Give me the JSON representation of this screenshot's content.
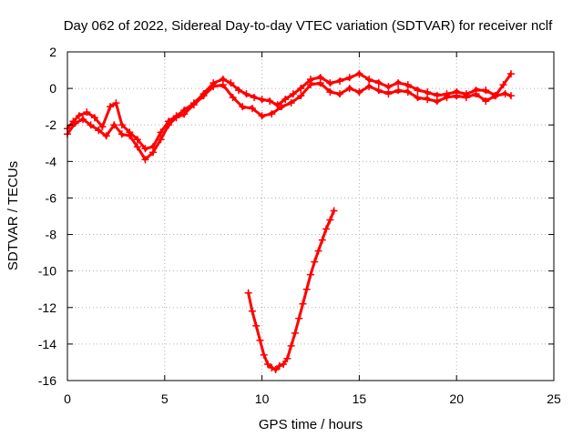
{
  "chart_data": {
    "type": "scatter",
    "title": "Day 062 of 2022, Sidereal Day-to-day VTEC variation (SDTVAR) for receiver nclf",
    "xlabel": "GPS time / hours",
    "ylabel": "SDTVAR / TECUs",
    "xlim": [
      0,
      25
    ],
    "ylim": [
      -16,
      2
    ],
    "xticks": [
      0,
      5,
      10,
      15,
      20,
      25
    ],
    "yticks": [
      2,
      0,
      -2,
      -4,
      -6,
      -8,
      -10,
      -12,
      -14,
      -16
    ],
    "xtick_labels": [
      "0",
      "5",
      "10",
      "15",
      "20",
      "25"
    ],
    "ytick_labels": [
      "2",
      "0",
      "-2",
      "-4",
      "-6",
      "-8",
      "-10",
      "-12",
      "-14",
      "-16"
    ],
    "grid": true,
    "legend": "none",
    "marker": "+",
    "color": "#ff0000",
    "series": [
      {
        "name": "main-upper",
        "x": [
          0.0,
          0.3,
          0.6,
          1.0,
          1.4,
          1.8,
          2.2,
          2.5,
          2.8,
          3.2,
          3.6,
          4.0,
          4.4,
          4.8,
          5.2,
          5.6,
          6.0,
          6.5,
          7.0,
          7.5,
          8.0,
          8.4,
          8.8,
          9.2,
          9.6,
          10.0,
          10.4,
          10.8,
          11.2,
          11.6,
          12.0,
          12.5,
          13.0,
          13.5,
          14.0,
          14.5,
          15.0,
          15.5,
          16.0,
          16.5,
          17.0,
          17.5,
          18.0,
          18.5,
          19.0,
          19.5,
          20.0,
          20.5,
          21.0,
          21.5,
          22.0,
          22.4,
          22.8
        ],
        "y": [
          -2.2,
          -1.8,
          -1.5,
          -1.3,
          -1.6,
          -2.1,
          -1.0,
          -0.8,
          -2.0,
          -2.4,
          -2.8,
          -3.3,
          -3.2,
          -2.4,
          -1.8,
          -1.5,
          -1.2,
          -0.8,
          -0.3,
          0.3,
          0.5,
          0.3,
          -0.1,
          -0.3,
          -0.5,
          -0.6,
          -0.7,
          -0.9,
          -0.6,
          -0.3,
          0.0,
          0.5,
          0.6,
          0.3,
          0.4,
          0.6,
          0.8,
          0.5,
          0.3,
          0.1,
          0.3,
          0.2,
          -0.1,
          -0.2,
          -0.4,
          -0.3,
          -0.2,
          -0.3,
          -0.1,
          -0.1,
          -0.4,
          0.2,
          0.8
        ]
      },
      {
        "name": "main-lower",
        "x": [
          0.0,
          0.4,
          0.8,
          1.2,
          1.6,
          2.0,
          2.4,
          2.8,
          3.2,
          3.6,
          4.0,
          4.4,
          4.8,
          5.2,
          5.6,
          6.0,
          6.5,
          7.0,
          7.5,
          8.0,
          8.5,
          9.0,
          9.5,
          10.0,
          10.5,
          11.0,
          11.5,
          12.0,
          12.5,
          13.0,
          13.5,
          14.0,
          14.5,
          15.0,
          15.5,
          16.0,
          16.5,
          17.0,
          17.5,
          18.0,
          18.5,
          19.0,
          19.5,
          20.0,
          20.5,
          21.0,
          21.5,
          22.0,
          22.5,
          22.8
        ],
        "y": [
          -2.5,
          -1.9,
          -1.7,
          -2.0,
          -2.3,
          -2.6,
          -2.0,
          -2.5,
          -2.6,
          -3.2,
          -3.9,
          -3.5,
          -2.8,
          -2.0,
          -1.6,
          -1.4,
          -0.9,
          -0.4,
          0.1,
          0.2,
          -0.5,
          -1.0,
          -1.1,
          -1.5,
          -1.4,
          -1.0,
          -0.8,
          -0.4,
          0.2,
          0.3,
          -0.2,
          -0.3,
          0.0,
          -0.2,
          0.1,
          -0.1,
          -0.3,
          -0.1,
          -0.2,
          -0.5,
          -0.6,
          -0.7,
          -0.5,
          -0.4,
          -0.5,
          -0.3,
          -0.7,
          -0.4,
          -0.3,
          -0.4
        ]
      },
      {
        "name": "dip",
        "x": [
          9.3,
          9.5,
          9.7,
          9.9,
          10.1,
          10.3,
          10.5,
          10.7,
          10.9,
          11.1,
          11.3,
          11.5,
          11.7,
          11.9,
          12.1,
          12.3,
          12.5,
          12.7,
          12.9,
          13.1,
          13.3,
          13.5,
          13.7
        ],
        "y": [
          -11.2,
          -12.2,
          -13.0,
          -13.8,
          -14.6,
          -15.1,
          -15.3,
          -15.4,
          -15.2,
          -15.1,
          -14.8,
          -14.1,
          -13.4,
          -12.6,
          -11.8,
          -11.0,
          -10.2,
          -9.5,
          -8.9,
          -8.3,
          -7.7,
          -7.2,
          -6.7
        ]
      }
    ]
  }
}
